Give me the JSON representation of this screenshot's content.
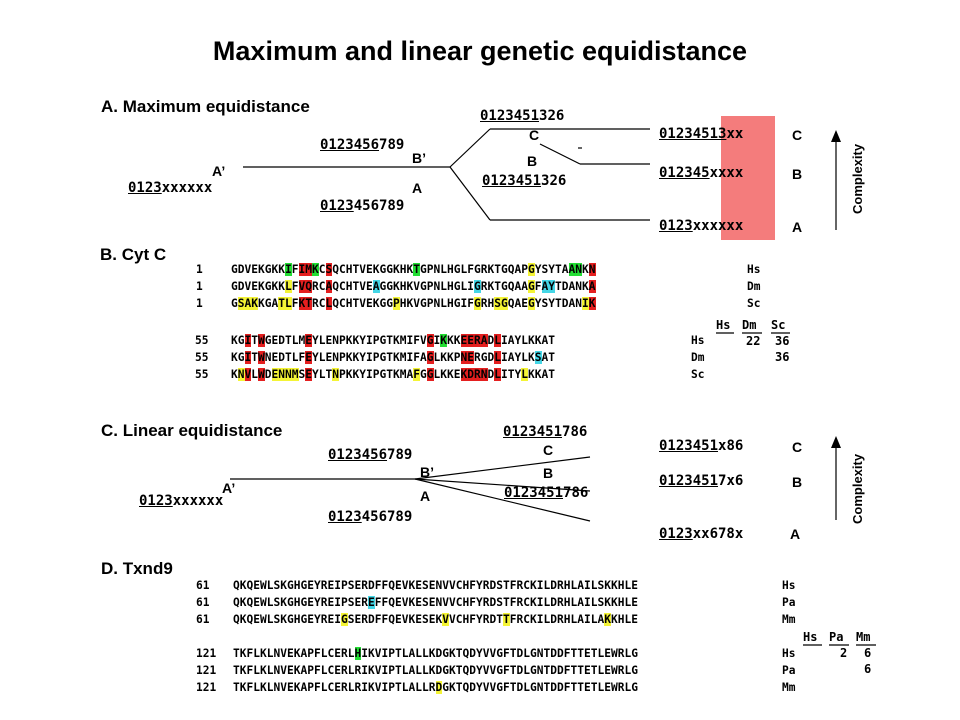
{
  "title": "Maximum and linear genetic equidistance",
  "sectionA": {
    "heading": "A.  Maximum equidistance",
    "a_prime": "A’",
    "a_prime_seq": "0123xxxxxx",
    "b_prime": "B’",
    "b_prime_seq": "0123456789",
    "node_a": "A",
    "node_a_seq": "0123456789",
    "node_c": "C",
    "node_c_seq": "0123451326",
    "node_b": "B",
    "node_b_seq": "0123451326",
    "leaves": [
      {
        "seq": "01234513xx",
        "label": "C"
      },
      {
        "seq": "012345xxxx",
        "label": "B"
      },
      {
        "seq": "0123xxxxxx",
        "label": "A"
      }
    ],
    "complexity_label": "Complexity",
    "highlight_color": "#f47c7c"
  },
  "sectionB": {
    "heading": "B. Cyt C",
    "rows1": [
      {
        "num": "1",
        "seq": "GDVEKGKKIFIMKCSQCHTVEKGGKHKTGPNLHGLFGRKTGQAPGYSYTAANKN",
        "sp": "Hs"
      },
      {
        "num": "1",
        "seq": "GDVEKGKKLFVQRCAQCHTVEAGGKHKVGPNLHGLIGRKTGQAAGFAYTDANKA",
        "sp": "Dm"
      },
      {
        "num": "1",
        "seq": "GSAKKGATLFKTRCLQCHTVEKGGPHKVGPNLHGIFGRHSGQAEGYSYTDANIK",
        "sp": "Sc"
      }
    ],
    "matrix_header": [
      "Hs",
      "Dm",
      "Sc"
    ],
    "matrix_row1": [
      "22",
      "36"
    ],
    "matrix_row2": [
      "36"
    ],
    "rows2": [
      {
        "num": "55",
        "seq": "KGITWGEDTLMEYLENPKKYIPGTKMIFVGIKKKEERADLIAYLKKAT",
        "sp": "Hs"
      },
      {
        "num": "55",
        "seq": "KGITWNEDTLFEYLENPKKYIPGTKMIFAGLKKPNERGDLIAYLKSAT",
        "sp": "Dm"
      },
      {
        "num": "55",
        "seq": "KNVLWDENNMSEYLTNPKKYIPGTKMAFGGLKKEKDRNDLITYLKKAT",
        "sp": "Sc"
      }
    ]
  },
  "sectionC": {
    "heading": "C.  Linear equidistance",
    "a_prime": "A’",
    "a_prime_seq": "0123xxxxxx",
    "b_prime": "B’",
    "b_prime_seq": "0123456789",
    "node_a": "A",
    "node_a_seq": "0123456789",
    "node_c": "C",
    "node_c_seq": "0123451786",
    "node_b": "B",
    "node_b_seq": "0123451786",
    "leaves": [
      {
        "seq": "0123451x86",
        "label": "C"
      },
      {
        "seq": "01234517x6",
        "label": "B"
      },
      {
        "seq": "0123xx678x",
        "label": "A"
      }
    ],
    "complexity_label": "Complexity"
  },
  "sectionD": {
    "heading": "D. Txnd9",
    "rows1": [
      {
        "num": "61",
        "seq": "QKQEWLSKGHGEYREIPSERDFFQEVKESENVVCHFYRDSTFRCKILDRHLAILSKKHLE",
        "sp": "Hs"
      },
      {
        "num": "61",
        "seq": "QKQEWLSKGHGEYREIPSEREFFQEVKESENVVCHFYRDSTFRCKILDRHLAILSKKHLE",
        "sp": "Pa"
      },
      {
        "num": "61",
        "seq": "QKQEWLSKGHGEYREIGSERDFFQEVKESEKVVCHFYRDTTFRCKILDRHLAILAKKHLE",
        "sp": "Mm"
      }
    ],
    "matrix_header": [
      "Hs",
      "Pa",
      "Mm"
    ],
    "matrix_row1": [
      "2",
      "6"
    ],
    "matrix_row2": [
      "6"
    ],
    "rows2": [
      {
        "num": "121",
        "seq": "TKFLKLNVEKAPFLCERLHIKVIPTLALLKDGKTQDYVVGFTDLGNTDDFTTETLEWRLG",
        "sp": "Hs"
      },
      {
        "num": "121",
        "seq": "TKFLKLNVEKAPFLCERLRIKVIPTLALLKDGKTQDYVVGFTDLGNTDDFTTETLEWRLG",
        "sp": "Pa"
      },
      {
        "num": "121",
        "seq": "TKFLKLNVEKAPFLCERLRIKVIPTLALLRDGKTQDYVVGFTDLGNTDDFTTETLEWRLG",
        "sp": "Mm"
      }
    ]
  },
  "highlights": {
    "cytc_rows1": [
      {
        "9": "g",
        "11": "r",
        "12": "r",
        "13": "g",
        "15": "r",
        "28": "g",
        "45": "y",
        "51": "g",
        "52": "g",
        "54": "r"
      },
      {
        "9": "y",
        "11": "r",
        "12": "r",
        "15": "r",
        "22": "c",
        "37": "c",
        "45": "y",
        "47": "c",
        "48": "c",
        "54": "r"
      },
      {
        "2": "y",
        "3": "y",
        "4": "y",
        "8": "y",
        "9": "y",
        "11": "r",
        "12": "r",
        "15": "r",
        "25": "y",
        "37": "y",
        "40": "y",
        "41": "y",
        "45": "y",
        "53": "y",
        "54": "r"
      }
    ],
    "cytc_rows2": [
      {
        "3": "r",
        "5": "r",
        "12": "r",
        "30": "r",
        "32": "g",
        "35": "r",
        "36": "r",
        "37": "r",
        "38": "r",
        "40": "r"
      },
      {
        "3": "r",
        "5": "r",
        "12": "r",
        "30": "r",
        "35": "r",
        "36": "r",
        "40": "r",
        "46": "c"
      },
      {
        "2": "y",
        "3": "r",
        "5": "r",
        "7": "y",
        "8": "y",
        "9": "y",
        "10": "y",
        "12": "r",
        "16": "y",
        "28": "y",
        "30": "r",
        "35": "r",
        "36": "r",
        "37": "r",
        "38": "r",
        "40": "r",
        "44": "y"
      }
    ],
    "txnd_rows1": [
      {},
      {
        "21": "c"
      },
      {
        "17": "y",
        "32": "y",
        "41": "y",
        "56": "y"
      }
    ],
    "txnd_rows2": [
      {
        "19": "g"
      },
      {},
      {
        "31": "y"
      }
    ]
  }
}
